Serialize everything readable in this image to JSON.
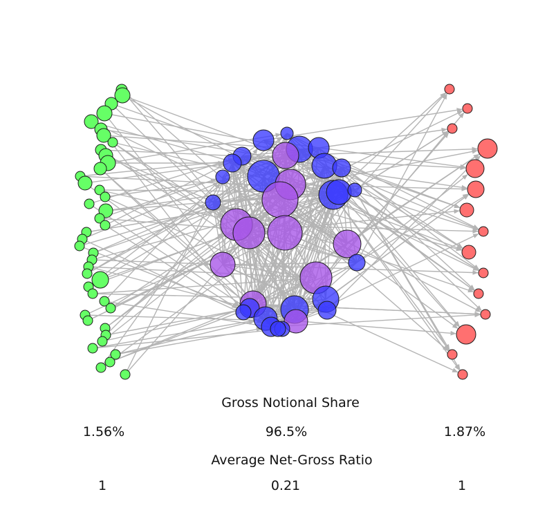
{
  "colors": {
    "edge": "#b4b4b4",
    "left": "#66ff66",
    "right": "#ff7070",
    "core_blue": "#3a3aff",
    "core_purple": "#a655e8",
    "stroke": "#1a1a1a"
  },
  "groups": {
    "left": {
      "gross_share": "1.56%",
      "net_gross_ratio": "1"
    },
    "core": {
      "gross_share": "96.5%",
      "net_gross_ratio": "0.21"
    },
    "right": {
      "gross_share": "1.87%",
      "net_gross_ratio": "1"
    }
  },
  "labels": {
    "gross_title": "Gross Notional Share",
    "ratio_title": "Average Net-Gross Ratio"
  }
}
